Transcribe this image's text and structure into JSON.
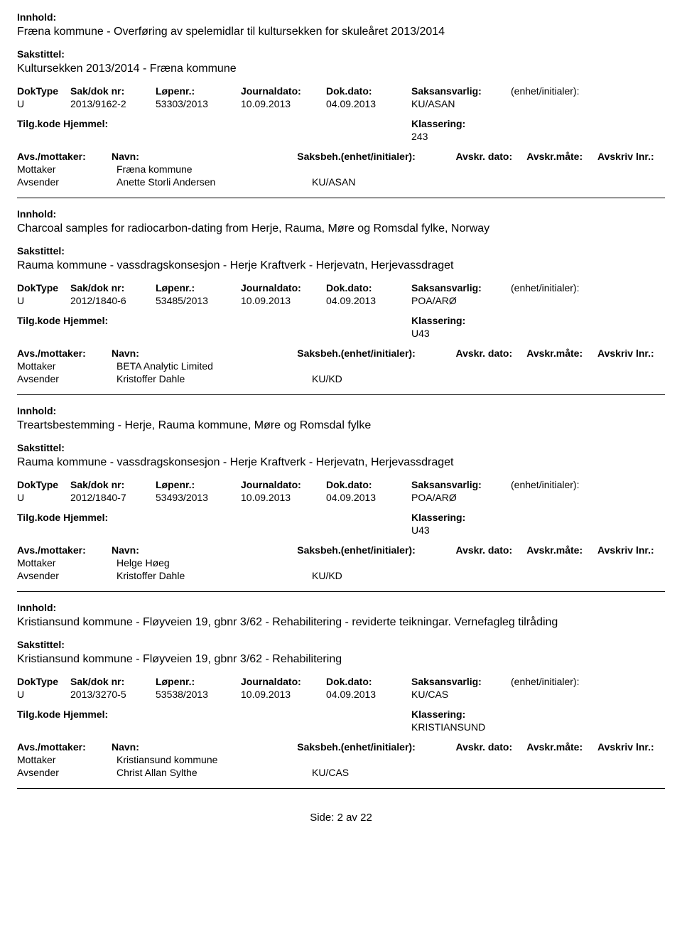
{
  "labels": {
    "innhold": "Innhold:",
    "sakstittel": "Sakstittel:",
    "doktype": "DokType",
    "sakdok": "Sak/dok nr:",
    "lopenr": "Løpenr.:",
    "journaldato": "Journaldato:",
    "dokdato": "Dok.dato:",
    "saksansvarlig": "Saksansvarlig:",
    "enhet": "(enhet/initialer):",
    "tilgkode": "Tilg.kode",
    "hjemmel": "Hjemmel:",
    "klassering": "Klassering:",
    "avsmot": "Avs./mottaker:",
    "navn": "Navn:",
    "saksbeh": "Saksbeh.(enhet/initialer):",
    "avskrdato": "Avskr. dato:",
    "avskrmate": "Avskr.måte:",
    "avskrivlnr": "Avskriv lnr.:",
    "mottaker": "Mottaker",
    "avsender": "Avsender"
  },
  "records": [
    {
      "innhold": "Fræna kommune - Overføring av spelemidlar til kultursekken for skuleåret 2013/2014",
      "sakstittel": "Kultursekken 2013/2014 - Fræna kommune",
      "doktype": "U",
      "sakdok": "2013/9162-2",
      "lopenr": "53303/2013",
      "journaldato": "10.09.2013",
      "dokdato": "04.09.2013",
      "saksansvarlig": "KU/ASAN",
      "klassering": "243",
      "mottaker": "Fræna kommune",
      "avsender": "Anette Storli Andersen",
      "avsender_unit": "KU/ASAN"
    },
    {
      "innhold": "Charcoal samples for radiocarbon-dating from Herje, Rauma, Møre og Romsdal fylke, Norway",
      "sakstittel": "Rauma kommune - vassdragskonsesjon - Herje Kraftverk - Herjevatn, Herjevassdraget",
      "doktype": "U",
      "sakdok": "2012/1840-6",
      "lopenr": "53485/2013",
      "journaldato": "10.09.2013",
      "dokdato": "04.09.2013",
      "saksansvarlig": "POA/ARØ",
      "klassering": "U43",
      "mottaker": "BETA Analytic Limited",
      "avsender": "Kristoffer Dahle",
      "avsender_unit": "KU/KD"
    },
    {
      "innhold": "Treartsbestemming - Herje, Rauma kommune, Møre og Romsdal fylke",
      "sakstittel": "Rauma kommune - vassdragskonsesjon - Herje Kraftverk - Herjevatn, Herjevassdraget",
      "doktype": "U",
      "sakdok": "2012/1840-7",
      "lopenr": "53493/2013",
      "journaldato": "10.09.2013",
      "dokdato": "04.09.2013",
      "saksansvarlig": "POA/ARØ",
      "klassering": "U43",
      "mottaker": "Helge Høeg",
      "avsender": "Kristoffer Dahle",
      "avsender_unit": "KU/KD"
    },
    {
      "innhold": "Kristiansund kommune - Fløyveien 19, gbnr 3/62 - Rehabilitering - reviderte teikningar. Vernefagleg tilråding",
      "sakstittel": "Kristiansund kommune - Fløyveien 19, gbnr 3/62 - Rehabilitering",
      "doktype": "U",
      "sakdok": "2013/3270-5",
      "lopenr": "53538/2013",
      "journaldato": "10.09.2013",
      "dokdato": "04.09.2013",
      "saksansvarlig": "KU/CAS",
      "klassering": "KRISTIANSUND",
      "mottaker": "Kristiansund kommune",
      "avsender": "Christ Allan Sylthe",
      "avsender_unit": "KU/CAS"
    }
  ],
  "footer": "Side: 2 av 22"
}
